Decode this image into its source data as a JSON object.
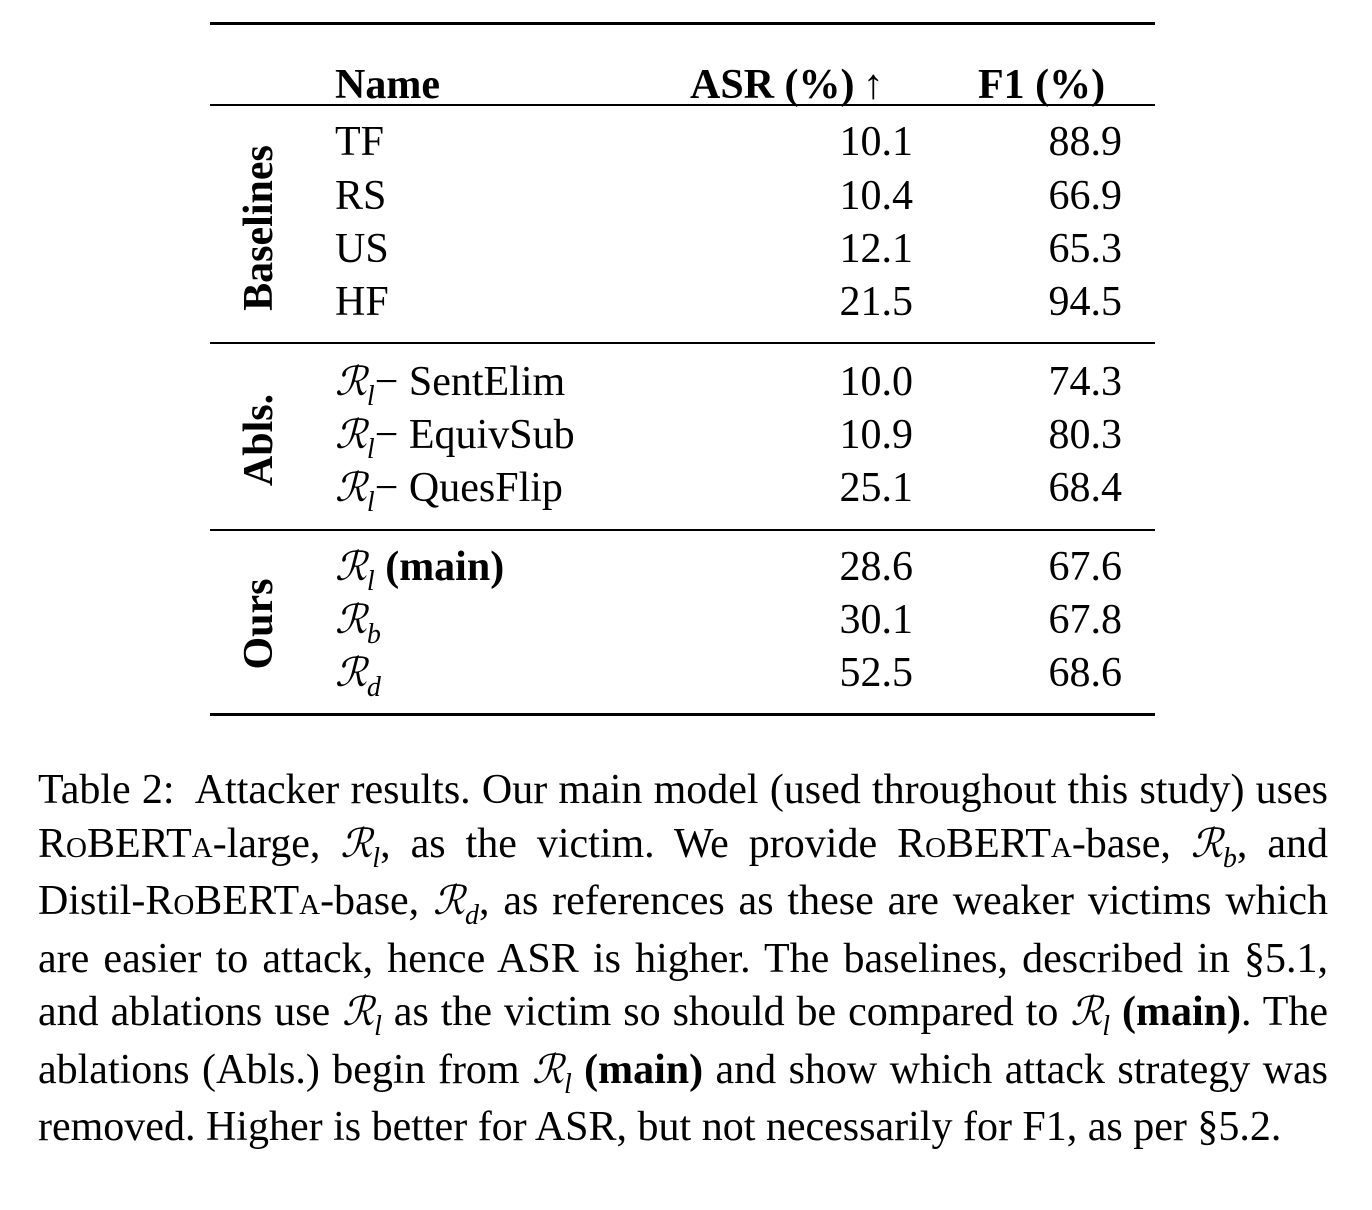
{
  "table": {
    "headers": {
      "name": "Name",
      "asr": "ASR (%) ↑",
      "f1": "F1 (%)"
    },
    "groups": [
      {
        "label": "Baselines",
        "rows": [
          {
            "name": "TF",
            "asr": "10.1",
            "f1": "88.9"
          },
          {
            "name": "RS",
            "asr": "10.4",
            "f1": "66.9"
          },
          {
            "name": "US",
            "asr": "12.1",
            "f1": "65.3"
          },
          {
            "name": "HF",
            "asr": "21.5",
            "f1": "94.5"
          }
        ]
      },
      {
        "label": "Abls.",
        "rows": [
          {
            "sym": "ℛ",
            "sub": "l",
            "suffix": "− SentElim",
            "asr": "10.0",
            "f1": "74.3"
          },
          {
            "sym": "ℛ",
            "sub": "l",
            "suffix": "− EquivSub",
            "asr": "10.9",
            "f1": "80.3"
          },
          {
            "sym": "ℛ",
            "sub": "l",
            "suffix": "− QuesFlip",
            "asr": "25.1",
            "f1": "68.4"
          }
        ]
      },
      {
        "label": "Ours",
        "rows": [
          {
            "sym": "ℛ",
            "sub": "l",
            "suffix": "(main)",
            "asr": "28.6",
            "f1": "67.6"
          },
          {
            "sym": "ℛ",
            "sub": "b",
            "suffix": "",
            "asr": "30.1",
            "f1": "67.8"
          },
          {
            "sym": "ℛ",
            "sub": "d",
            "suffix": "",
            "asr": "52.5",
            "f1": "68.6"
          }
        ]
      }
    ]
  },
  "caption": {
    "label": "Table 2:",
    "p1": "Attacker results.  Our main model (used throughout this study) uses ",
    "roberta": "RoBERTa",
    "large": "-large, ",
    "rl": "ℛ",
    "l": "l",
    "p2": ", as the victim.  We provide ",
    "base": "-base, ",
    "rb_sub": "b",
    "p3": ", and Distil-",
    "base2": "-base, ",
    "rd_sub": "d",
    "p4": ", as references as these are weaker victims which are easier to attack, hence ASR is higher. The baselines, described in §5.1, and ablations use ",
    "p5": " as the victim so should be compared to ",
    "main": "(main)",
    "p6": ".  The ablations (Abls.) begin from ",
    "p7": " and show which attack strategy was removed. Higher is better for ASR, but not necessarily for F1, as per §5.2."
  }
}
